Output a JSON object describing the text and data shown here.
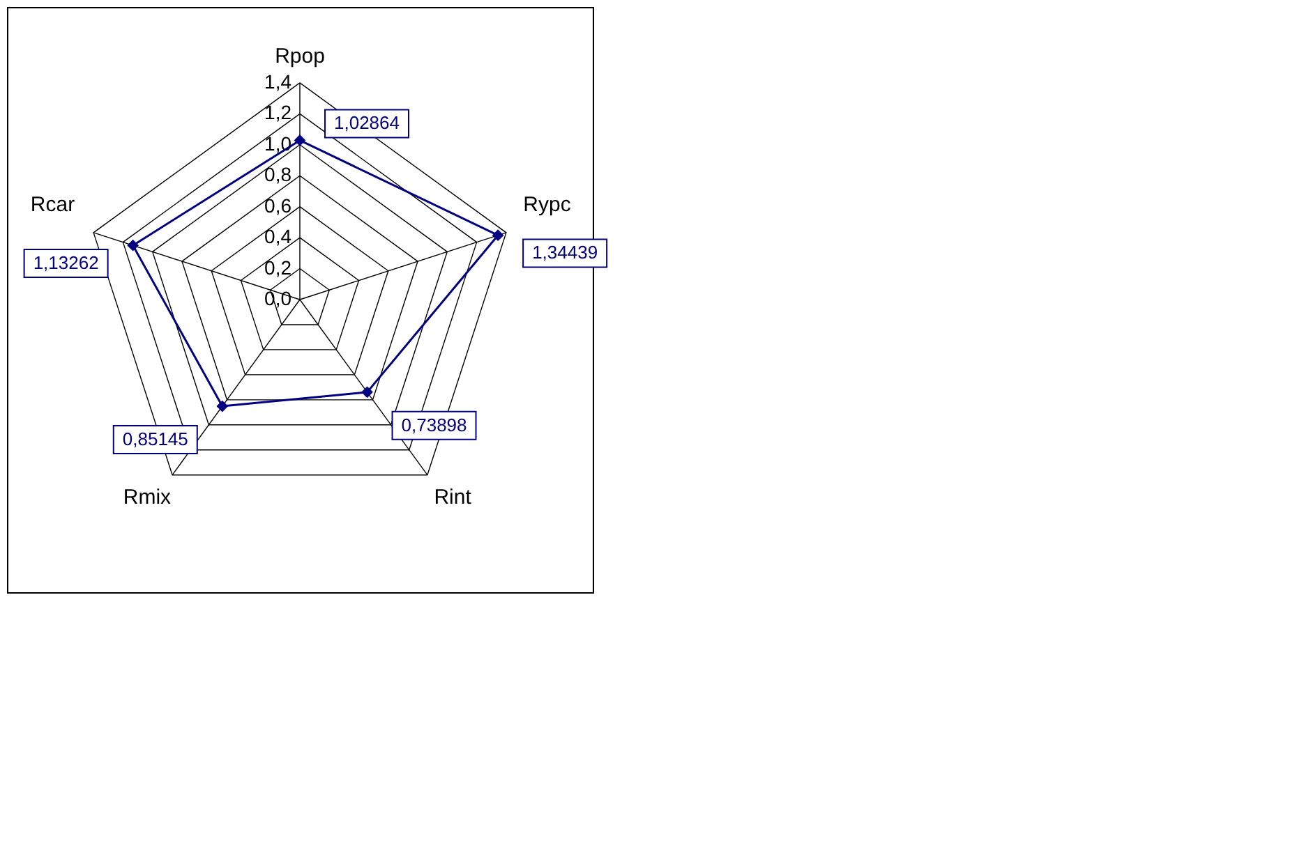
{
  "chart_data": {
    "type": "radar",
    "categories": [
      "Rpop",
      "Rypc",
      "Rint",
      "Rmix",
      "Rcar"
    ],
    "series": [
      {
        "color": "#000080",
        "values": [
          1.02864,
          1.34439,
          0.73898,
          0.85145,
          1.13262
        ],
        "value_labels": [
          "1,02864",
          "1,34439",
          "0,73898",
          "0,85145",
          "1,13262"
        ]
      }
    ],
    "ylim": [
      0,
      1.4
    ],
    "yticks": [
      {
        "value": 0,
        "label": "0,0"
      },
      {
        "value": 0.2,
        "label": "0,2"
      },
      {
        "value": 0.4,
        "label": "0,4"
      },
      {
        "value": 0.6,
        "label": "0,6"
      },
      {
        "value": 0.8,
        "label": "0,8"
      },
      {
        "value": 1.0,
        "label": "1,0"
      },
      {
        "value": 1.2,
        "label": "1,2"
      },
      {
        "value": 1.4,
        "label": "1,4"
      }
    ],
    "grid": true,
    "marker": "diamond",
    "line_style": "solid"
  }
}
